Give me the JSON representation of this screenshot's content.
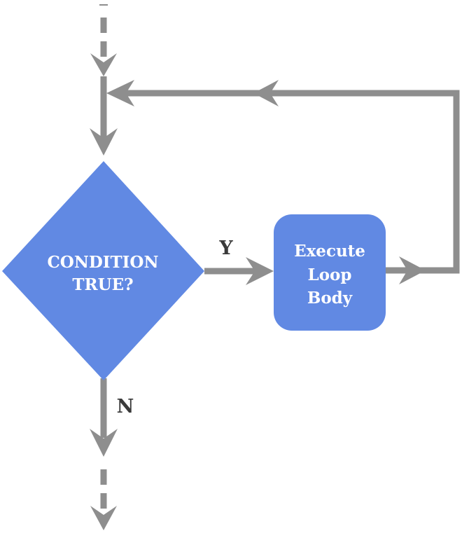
{
  "diagram": {
    "type": "flowchart",
    "colors": {
      "node_fill": "#6189e3",
      "node_text": "#ffffff",
      "arrow": "#8e8e8e",
      "edge_label": "#3a3a3a",
      "background": "#ffffff"
    },
    "nodes": {
      "decision": {
        "shape": "diamond",
        "line1": "CONDITION",
        "line2": "TRUE?"
      },
      "process": {
        "shape": "rounded-rectangle",
        "line1": "Execute",
        "line2": "Loop",
        "line3": "Body"
      }
    },
    "edges": {
      "yes_label": "Y",
      "no_label": "N"
    }
  }
}
